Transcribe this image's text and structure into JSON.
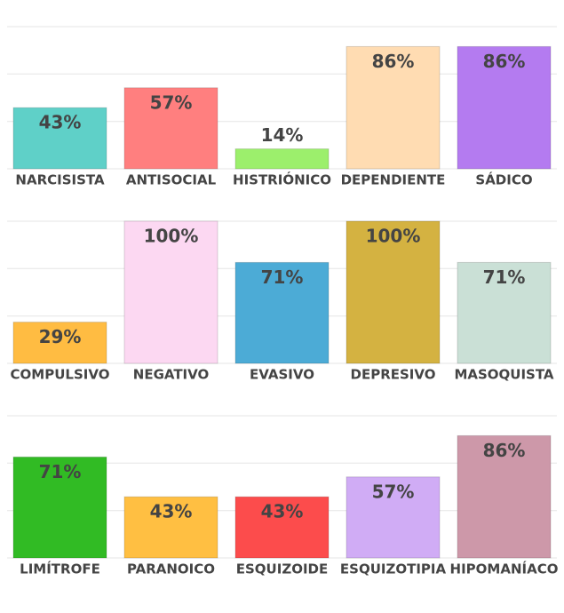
{
  "chart_data": [
    {
      "type": "bar",
      "categories": [
        "NARCISISTA",
        "ANTISOCIAL",
        "HISTRIÓNICO",
        "DEPENDIENTE",
        "SÁDICO"
      ],
      "values": [
        43,
        57,
        14,
        86,
        86
      ],
      "value_labels": [
        "43%",
        "57%",
        "14%",
        "86%",
        "86%"
      ],
      "colors": [
        "#5fd0c8",
        "#ff7f7f",
        "#9cef6c",
        "#ffdcb2",
        "#b47bf0"
      ],
      "ylim": [
        0,
        100
      ],
      "yticks": [
        0,
        33.3,
        66.7,
        100
      ],
      "grid": true
    },
    {
      "type": "bar",
      "categories": [
        "COMPULSIVO",
        "NEGATIVO",
        "EVASIVO",
        "DEPRESIVO",
        "MASOQUISTA"
      ],
      "values": [
        29,
        100,
        71,
        100,
        71
      ],
      "value_labels": [
        "29%",
        "100%",
        "71%",
        "100%",
        "71%"
      ],
      "colors": [
        "#ffbc42",
        "#fcd8f2",
        "#4cabd6",
        "#d4b241",
        "#cae0d6"
      ],
      "ylim": [
        0,
        100
      ],
      "yticks": [
        0,
        33.3,
        66.7,
        100
      ],
      "grid": true
    },
    {
      "type": "bar",
      "categories": [
        "LIMÍTROFE",
        "PARANOICO",
        "ESQUIZOIDE",
        "ESQUIZOTIPIA",
        "HIPOMANÍACO"
      ],
      "values": [
        71,
        43,
        43,
        57,
        86
      ],
      "value_labels": [
        "71%",
        "43%",
        "43%",
        "57%",
        "86%"
      ],
      "colors": [
        "#31bb24",
        "#ffbf42",
        "#fc4c4c",
        "#d0acf5",
        "#cd98a9"
      ],
      "ylim": [
        0,
        100
      ],
      "yticks": [
        0,
        33.3,
        66.7,
        100
      ],
      "grid": true
    }
  ]
}
